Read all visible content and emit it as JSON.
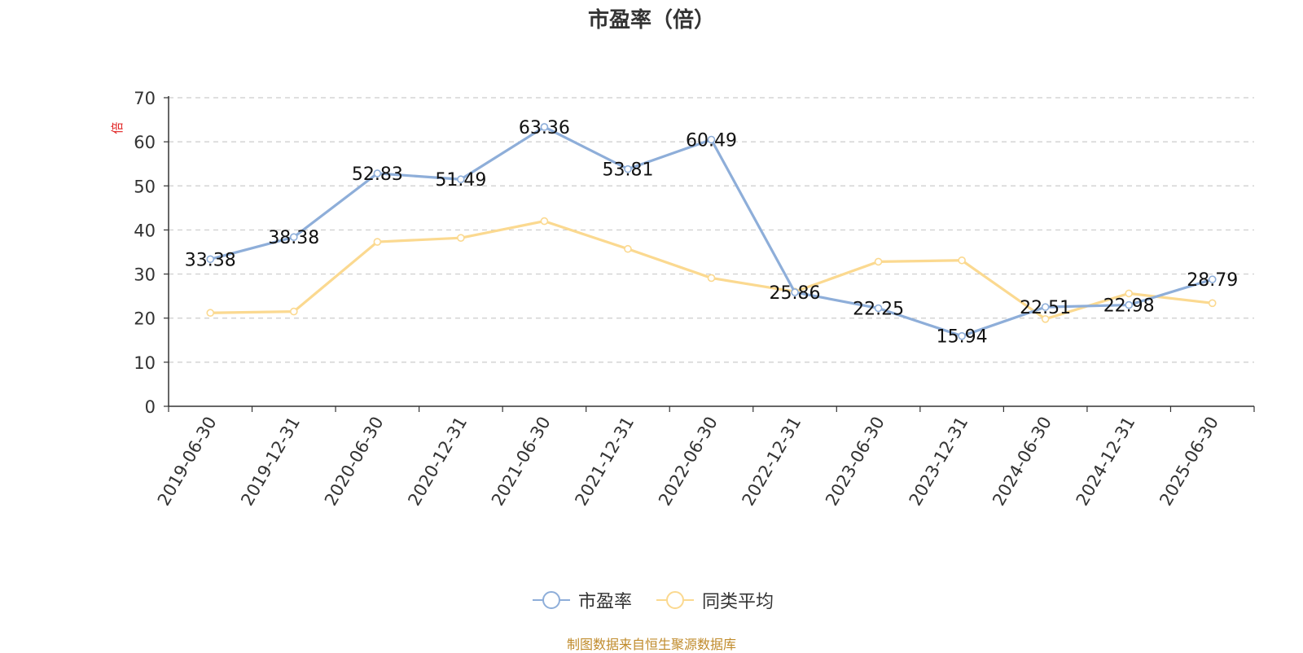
{
  "title": "市盈率（倍）",
  "source": "制图数据来自恒生聚源数据库",
  "legend": {
    "items": [
      {
        "label": "市盈率",
        "color": "#8eaed9"
      },
      {
        "label": "同类平均",
        "color": "#fbd990"
      }
    ]
  },
  "chart_data": {
    "type": "line",
    "title": "市盈率（倍）",
    "ylabel": "倍",
    "xlabel": "",
    "ylim": [
      0,
      70
    ],
    "yticks": [
      0,
      10,
      20,
      30,
      40,
      50,
      60,
      70
    ],
    "grid": true,
    "legend_position": "bottom",
    "categories": [
      "2019-06-30",
      "2019-12-31",
      "2020-06-30",
      "2020-12-31",
      "2021-06-30",
      "2021-12-31",
      "2022-06-30",
      "2022-12-31",
      "2023-06-30",
      "2023-12-31",
      "2024-06-30",
      "2024-12-31",
      "2025-06-30"
    ],
    "series": [
      {
        "name": "市盈率",
        "color": "#8eaed9",
        "show_labels": true,
        "values": [
          33.38,
          38.38,
          52.83,
          51.49,
          63.36,
          53.81,
          60.49,
          25.86,
          22.25,
          15.94,
          22.51,
          22.98,
          28.79
        ]
      },
      {
        "name": "同类平均",
        "color": "#fbd990",
        "show_labels": false,
        "values": [
          21.2,
          21.5,
          37.3,
          38.2,
          42.0,
          35.7,
          29.1,
          26.0,
          32.8,
          33.1,
          19.8,
          25.6,
          23.4
        ]
      }
    ]
  }
}
